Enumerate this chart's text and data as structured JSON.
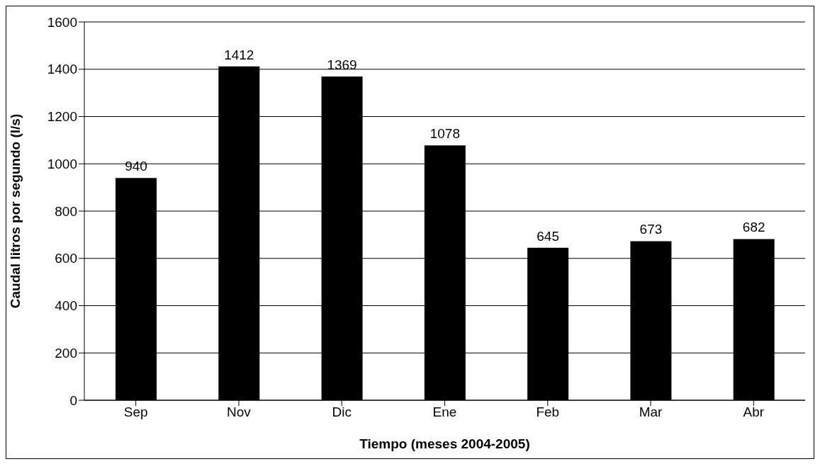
{
  "chart_data": {
    "type": "bar",
    "xlabel": "Tiempo (meses 2004-2005)",
    "ylabel": "Caudal litros por segundo (l/s)",
    "categories": [
      "Sep",
      "Nov",
      "Dic",
      "Ene",
      "Feb",
      "Mar",
      "Abr"
    ],
    "values": [
      940,
      1412,
      1369,
      1078,
      645,
      673,
      682
    ],
    "color": "#000000",
    "ylim": [
      0,
      1600
    ],
    "yticks": [
      0,
      200,
      400,
      600,
      800,
      1000,
      1200,
      1400,
      1600
    ],
    "grid": "y",
    "data_labels": true
  }
}
